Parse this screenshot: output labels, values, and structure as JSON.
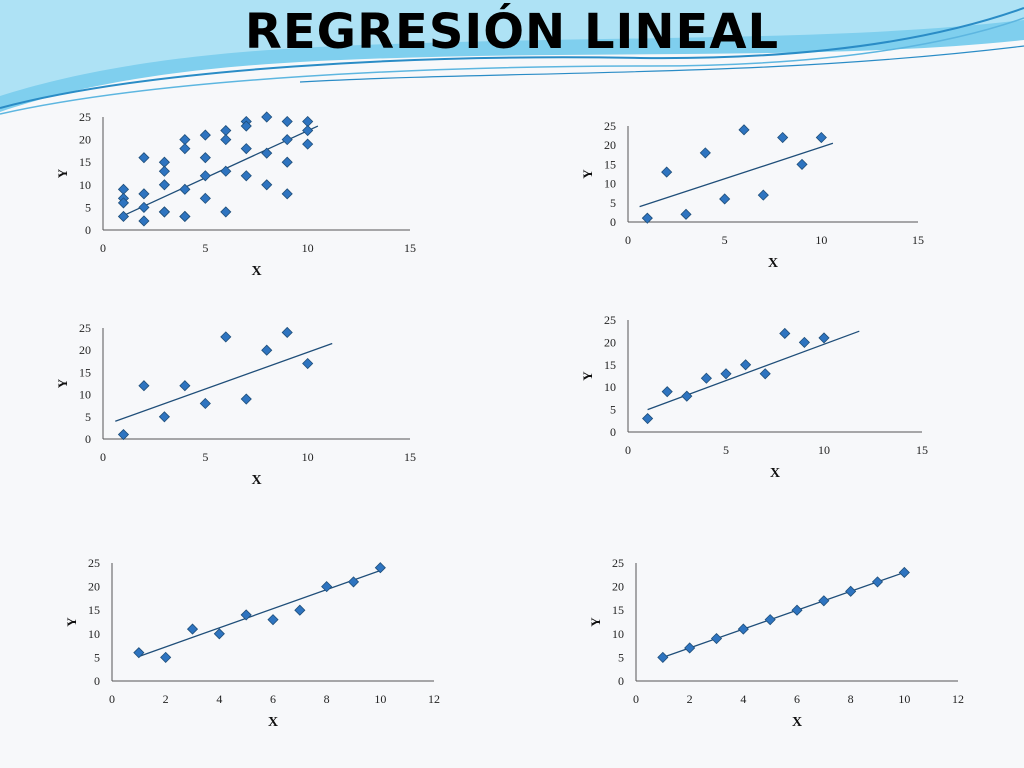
{
  "slide": {
    "title": "REGRESIÓN LINEAL"
  },
  "colors": {
    "marker": "#2e74c0",
    "marker_edge": "#1f4e79",
    "line": "#1f4e79",
    "axis": "#555555",
    "wave_dark": "#2a8cc6",
    "wave_light": "#8fd3ef"
  },
  "chart_data": [
    {
      "type": "scatter",
      "xlabel": "X",
      "ylabel": "Y",
      "xticks": [
        0,
        5,
        10,
        15
      ],
      "yticks": [
        0,
        5,
        10,
        15,
        20,
        25
      ],
      "xlim": [
        0,
        15
      ],
      "ylim": [
        0,
        25
      ],
      "x": [
        1,
        1,
        1,
        1,
        2,
        2,
        2,
        2,
        3,
        3,
        3,
        3,
        3,
        4,
        4,
        4,
        4,
        4,
        5,
        5,
        5,
        5,
        6,
        6,
        6,
        6,
        7,
        7,
        7,
        7,
        8,
        8,
        8,
        9,
        9,
        9,
        9,
        10,
        10,
        10
      ],
      "y": [
        9,
        7,
        6,
        3,
        16,
        8,
        5,
        2,
        15,
        13,
        10,
        4,
        4,
        20,
        18,
        9,
        3,
        3,
        21,
        16,
        12,
        7,
        22,
        20,
        13,
        4,
        24,
        23,
        18,
        12,
        25,
        17,
        10,
        24,
        20,
        15,
        8,
        24,
        22,
        19
      ],
      "fit": {
        "x": [
          1,
          10.5
        ],
        "y": [
          3.2,
          23
        ]
      }
    },
    {
      "type": "scatter",
      "xlabel": "X",
      "ylabel": "Y",
      "xticks": [
        0,
        5,
        10,
        15
      ],
      "yticks": [
        0,
        5,
        10,
        15,
        20,
        25
      ],
      "xlim": [
        0,
        15
      ],
      "ylim": [
        0,
        25
      ],
      "x": [
        1,
        2,
        3,
        4,
        5,
        6,
        7,
        8,
        9,
        10
      ],
      "y": [
        1,
        13,
        2,
        18,
        6,
        24,
        7,
        22,
        15,
        22
      ],
      "fit": {
        "x": [
          0.6,
          10.6
        ],
        "y": [
          4,
          20.5
        ]
      }
    },
    {
      "type": "scatter",
      "xlabel": "X",
      "ylabel": "Y",
      "xticks": [
        0,
        5,
        10,
        15
      ],
      "yticks": [
        0,
        5,
        10,
        15,
        20,
        25
      ],
      "xlim": [
        0,
        15
      ],
      "ylim": [
        0,
        25
      ],
      "x": [
        1,
        2,
        3,
        4,
        5,
        6,
        7,
        8,
        9,
        10
      ],
      "y": [
        1,
        12,
        5,
        12,
        8,
        23,
        9,
        20,
        24,
        17
      ],
      "fit": {
        "x": [
          0.6,
          11.2
        ],
        "y": [
          4,
          21.5
        ]
      }
    },
    {
      "type": "scatter",
      "xlabel": "X",
      "ylabel": "Y",
      "xticks": [
        0,
        5,
        10,
        15
      ],
      "yticks": [
        0,
        5,
        10,
        15,
        20,
        25
      ],
      "xlim": [
        0,
        15
      ],
      "ylim": [
        0,
        25
      ],
      "x": [
        1,
        2,
        3,
        4,
        5,
        6,
        7,
        8,
        9,
        10
      ],
      "y": [
        3,
        9,
        8,
        12,
        13,
        15,
        13,
        22,
        20,
        21
      ],
      "fit": {
        "x": [
          1,
          11.8
        ],
        "y": [
          5,
          22.5
        ]
      }
    },
    {
      "type": "scatter",
      "xlabel": "X",
      "ylabel": "Y",
      "xticks": [
        0,
        2,
        4,
        6,
        8,
        10,
        12
      ],
      "yticks": [
        0,
        5,
        10,
        15,
        20,
        25
      ],
      "xlim": [
        0,
        12
      ],
      "ylim": [
        0,
        25
      ],
      "x": [
        1,
        2,
        3,
        4,
        5,
        6,
        7,
        8,
        9,
        10
      ],
      "y": [
        6,
        5,
        11,
        10,
        14,
        13,
        15,
        20,
        21,
        24
      ],
      "fit": {
        "x": [
          1,
          10.1
        ],
        "y": [
          5.2,
          23.6
        ]
      }
    },
    {
      "type": "scatter",
      "xlabel": "X",
      "ylabel": "Y",
      "xticks": [
        0,
        2,
        4,
        6,
        8,
        10,
        12
      ],
      "yticks": [
        0,
        5,
        10,
        15,
        20,
        25
      ],
      "xlim": [
        0,
        12
      ],
      "ylim": [
        0,
        25
      ],
      "x": [
        1,
        2,
        3,
        4,
        5,
        6,
        7,
        8,
        9,
        10
      ],
      "y": [
        5,
        7,
        9,
        11,
        13,
        15,
        17,
        19,
        21,
        23
      ],
      "fit": {
        "x": [
          1,
          10
        ],
        "y": [
          5,
          23
        ]
      }
    }
  ]
}
